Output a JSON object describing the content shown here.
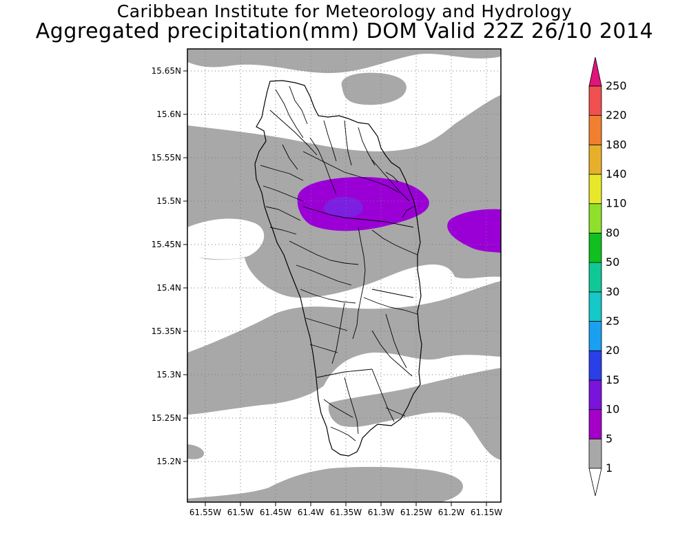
{
  "header": {
    "line1": "Caribbean Institute for Meteorology and Hydrology",
    "line2": "Aggregated precipitation(mm) DOM Valid 22Z 26/10 2014"
  },
  "map": {
    "region": "Dominica",
    "lat_ticks": [
      "15.65N",
      "15.6N",
      "15.55N",
      "15.5N",
      "15.45N",
      "15.4N",
      "15.35N",
      "15.3N",
      "15.25N",
      "15.2N"
    ],
    "lon_ticks": [
      "61.55W",
      "61.5W",
      "61.45W",
      "61.4W",
      "61.35W",
      "61.3W",
      "61.25W",
      "61.2W",
      "61.15W"
    ],
    "field_colors": {
      "light": "#a8a8a8",
      "moderate": "#9a00d6",
      "heavy": "#7c1fe0"
    }
  },
  "colorbar": {
    "levels": [
      {
        "label": "1",
        "color": "#a8a8a8"
      },
      {
        "label": "5",
        "color": "#a400c8"
      },
      {
        "label": "10",
        "color": "#7a14dc"
      },
      {
        "label": "15",
        "color": "#2b3fe8"
      },
      {
        "label": "20",
        "color": "#1aa0f0"
      },
      {
        "label": "25",
        "color": "#16c8c8"
      },
      {
        "label": "30",
        "color": "#10c896"
      },
      {
        "label": "50",
        "color": "#10c020"
      },
      {
        "label": "80",
        "color": "#8ee02a"
      },
      {
        "label": "110",
        "color": "#e8e82a"
      },
      {
        "label": "140",
        "color": "#e8b02a"
      },
      {
        "label": "180",
        "color": "#f08030"
      },
      {
        "label": "220",
        "color": "#f05050"
      },
      {
        "label": "250",
        "color": "#e0147c"
      }
    ]
  }
}
